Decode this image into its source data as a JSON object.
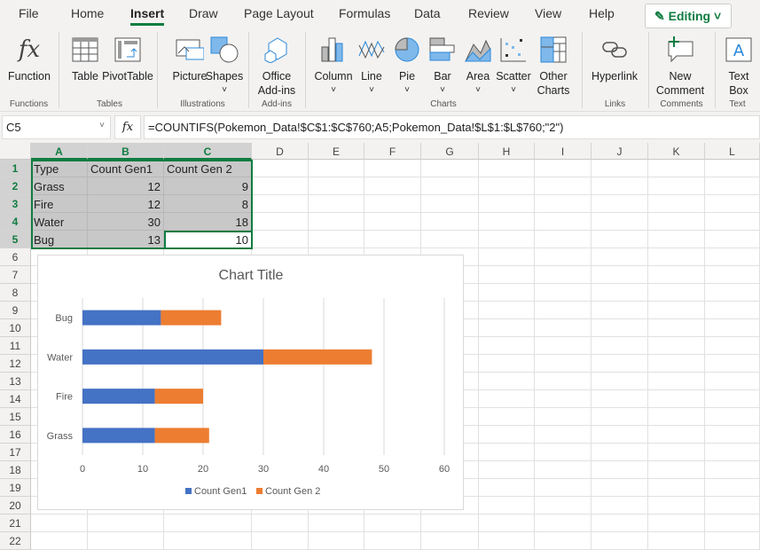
{
  "menu": {
    "tabs": [
      "File",
      "Home",
      "Insert",
      "Draw",
      "Page Layout",
      "Formulas",
      "Data",
      "Review",
      "View",
      "Help"
    ],
    "active": "Insert",
    "editing": "Editing"
  },
  "ribbon": {
    "buttons": [
      {
        "label": "Function",
        "icon": "function-icon"
      },
      {
        "label": "Table",
        "icon": "table-icon"
      },
      {
        "label": "PivotTable",
        "icon": "pivottable-icon"
      },
      {
        "label": "Picture",
        "icon": "picture-icon"
      },
      {
        "label": "Shapes",
        "icon": "shapes-icon"
      },
      {
        "label": "Office Add-ins",
        "icon": "addins-icon"
      },
      {
        "label": "Column",
        "icon": "column-chart-icon"
      },
      {
        "label": "Line",
        "icon": "line-chart-icon"
      },
      {
        "label": "Pie",
        "icon": "pie-chart-icon"
      },
      {
        "label": "Bar",
        "icon": "bar-chart-icon"
      },
      {
        "label": "Area",
        "icon": "area-chart-icon"
      },
      {
        "label": "Scatter",
        "icon": "scatter-chart-icon"
      },
      {
        "label": "Other Charts",
        "icon": "other-charts-icon"
      },
      {
        "label": "Hyperlink",
        "icon": "link-icon"
      },
      {
        "label": "New Comment",
        "icon": "comment-icon"
      },
      {
        "label": "Text Box",
        "icon": "textbox-icon"
      }
    ],
    "groups": [
      "Functions",
      "Tables",
      "Illustrations",
      "Add-ins",
      "Charts",
      "Links",
      "Comments",
      "Text"
    ]
  },
  "formula_bar": {
    "name_box": "C5",
    "fx": "fx",
    "formula": "=COUNTIFS(Pokemon_Data!$C$1:$C$760;A5;Pokemon_Data!$L$1:$L$760;\"2\")"
  },
  "sheet": {
    "columns": [
      "A",
      "B",
      "C",
      "D",
      "E",
      "F",
      "G",
      "H",
      "I",
      "J",
      "K",
      "L"
    ],
    "rows": [
      "1",
      "2",
      "3",
      "4",
      "5",
      "6",
      "7",
      "8",
      "9",
      "10",
      "11",
      "12",
      "13",
      "14",
      "15",
      "16",
      "17",
      "18",
      "19",
      "20",
      "21",
      "22"
    ],
    "cells": [
      [
        "Type",
        "Count Gen1",
        "Count Gen 2"
      ],
      [
        "Grass",
        "12",
        "9"
      ],
      [
        "Fire",
        "12",
        "8"
      ],
      [
        "Water",
        "30",
        "18"
      ],
      [
        "Bug",
        "13",
        "10"
      ]
    ]
  },
  "chart_data": {
    "type": "bar",
    "stacked": true,
    "orientation": "horizontal",
    "title": "Chart Title",
    "categories": [
      "Grass",
      "Fire",
      "Water",
      "Bug"
    ],
    "series": [
      {
        "name": "Count Gen1",
        "values": [
          12,
          12,
          30,
          13
        ],
        "color": "#4472c4"
      },
      {
        "name": "Count Gen 2",
        "values": [
          9,
          8,
          18,
          10
        ],
        "color": "#ed7d31"
      }
    ],
    "xlim": [
      0,
      60
    ],
    "xticks": [
      "0",
      "10",
      "20",
      "30",
      "40",
      "50",
      "60"
    ],
    "grid": true,
    "legend": "bottom"
  }
}
